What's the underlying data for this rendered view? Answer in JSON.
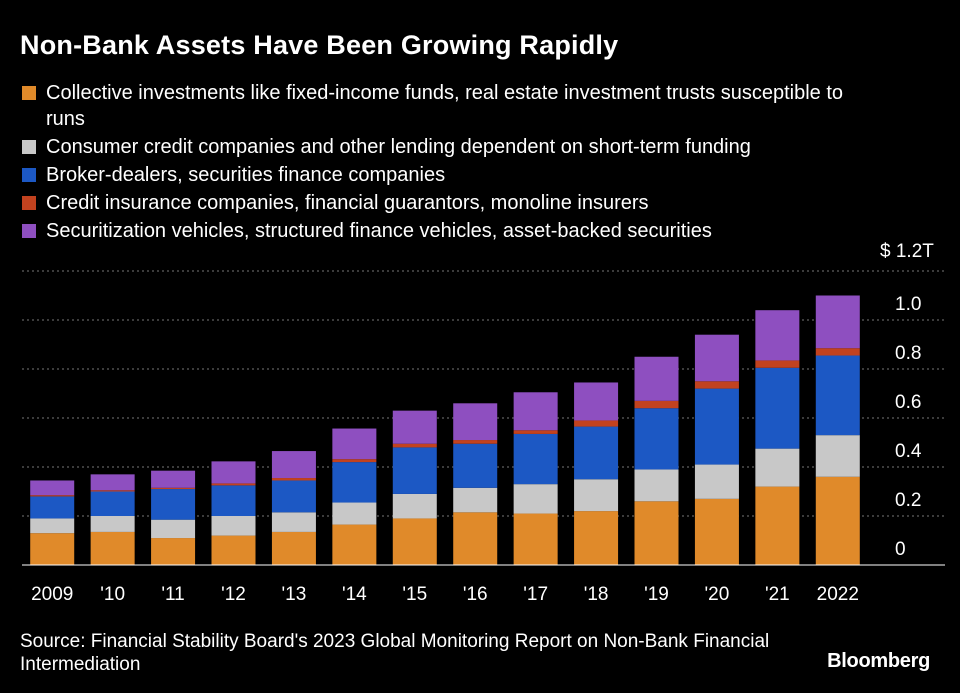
{
  "title": "Non-Bank Assets Have Been Growing Rapidly",
  "legend": [
    {
      "label": "Collective investments like fixed-income funds, real estate investment trusts susceptible to runs",
      "color": "#e08a2a"
    },
    {
      "label": "Consumer credit companies and other lending dependent on short-term funding",
      "color": "#c8c8c8"
    },
    {
      "label": "Broker-dealers, securities finance companies",
      "color": "#1c58c4"
    },
    {
      "label": "Credit insurance companies, financial guarantors, monoline insurers",
      "color": "#c2421f"
    },
    {
      "label": "Securitization vehicles, structured finance vehicles, asset-backed securities",
      "color": "#8e4fc0"
    }
  ],
  "source": "Source: Financial Stability Board's 2023 Global Monitoring Report on Non-Bank Financial Intermediation",
  "brand": "Bloomberg",
  "chart_data": {
    "type": "bar",
    "stacked": true,
    "categories": [
      "2009",
      "'10",
      "'11",
      "'12",
      "'13",
      "'14",
      "'15",
      "'16",
      "'17",
      "'18",
      "'19",
      "'20",
      "'21",
      "2022"
    ],
    "series": [
      {
        "name": "Collective investments like fixed-income funds, real estate investment trusts susceptible to runs",
        "color": "#e08a2a",
        "values": [
          0.13,
          0.135,
          0.11,
          0.12,
          0.135,
          0.165,
          0.19,
          0.215,
          0.21,
          0.22,
          0.26,
          0.27,
          0.32,
          0.36
        ]
      },
      {
        "name": "Consumer credit companies and other lending dependent on short-term funding",
        "color": "#c8c8c8",
        "values": [
          0.06,
          0.065,
          0.075,
          0.08,
          0.08,
          0.09,
          0.1,
          0.1,
          0.12,
          0.13,
          0.13,
          0.14,
          0.155,
          0.17
        ]
      },
      {
        "name": "Broker-dealers, securities finance companies",
        "color": "#1c58c4",
        "values": [
          0.09,
          0.1,
          0.125,
          0.125,
          0.13,
          0.165,
          0.19,
          0.18,
          0.205,
          0.215,
          0.25,
          0.31,
          0.33,
          0.325
        ]
      },
      {
        "name": "Credit insurance companies, financial guarantors, monoline insurers",
        "color": "#c2421f",
        "values": [
          0.005,
          0.005,
          0.005,
          0.008,
          0.01,
          0.012,
          0.015,
          0.015,
          0.015,
          0.025,
          0.03,
          0.03,
          0.03,
          0.03
        ]
      },
      {
        "name": "Securitization vehicles, structured finance vehicles, asset-backed securities",
        "color": "#8e4fc0",
        "values": [
          0.06,
          0.065,
          0.07,
          0.09,
          0.11,
          0.125,
          0.135,
          0.15,
          0.155,
          0.155,
          0.18,
          0.19,
          0.205,
          0.215
        ]
      }
    ],
    "y_ticks": [
      "0",
      "0.2",
      "0.4",
      "0.6",
      "0.8",
      "1.0",
      "$ 1.2T"
    ],
    "y_tick_values": [
      0,
      0.2,
      0.4,
      0.6,
      0.8,
      1.0,
      1.2
    ],
    "ylim": [
      0,
      1.2
    ],
    "y_axis_side": "right",
    "grid": true
  }
}
